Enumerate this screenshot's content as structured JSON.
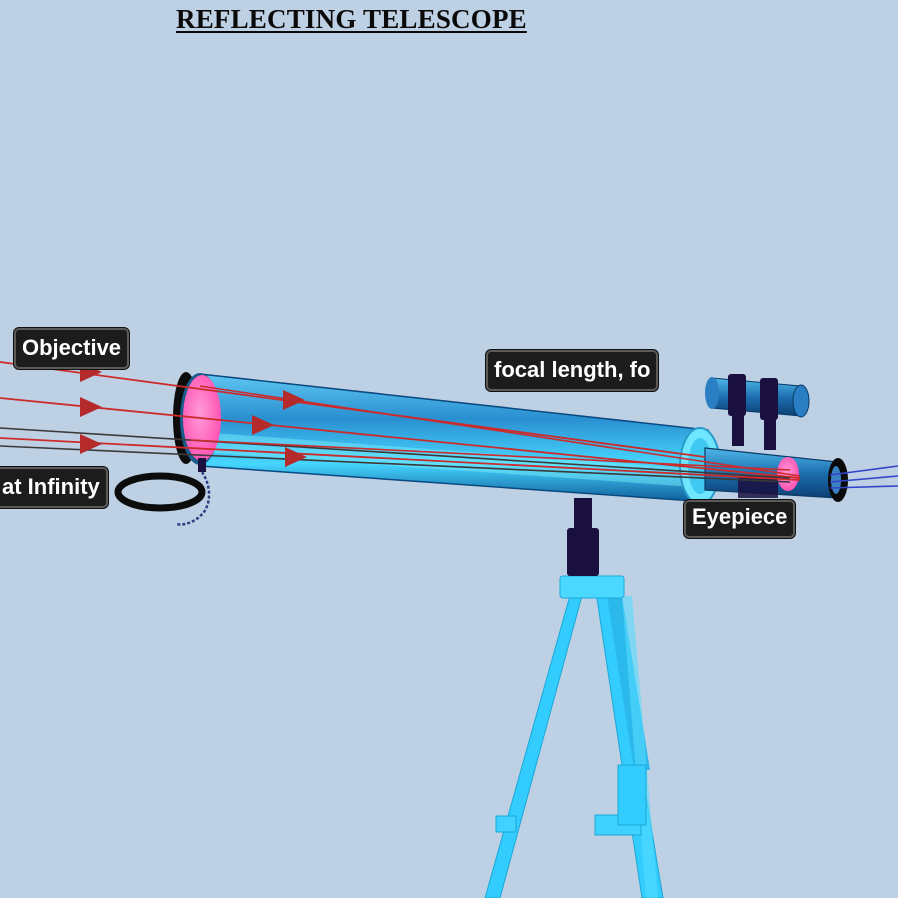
{
  "title": "REFLECTING TELESCOPE",
  "labels": {
    "objective": "Objective",
    "focal_length": "focal length, fo",
    "at_infinity": "at Infinity",
    "eyepiece": "Eyepiece"
  },
  "colors": {
    "background": "#bed0e4",
    "tube": "#2fa6e0",
    "tube_highlight": "#8fe0ff",
    "tripod": "#33ccff",
    "mirror": "#ff6fbf",
    "ray_red": "#cc2b2b",
    "ray_dark": "#3a3a3a",
    "ray_blue": "#3344cc",
    "mount": "#1a1040"
  }
}
